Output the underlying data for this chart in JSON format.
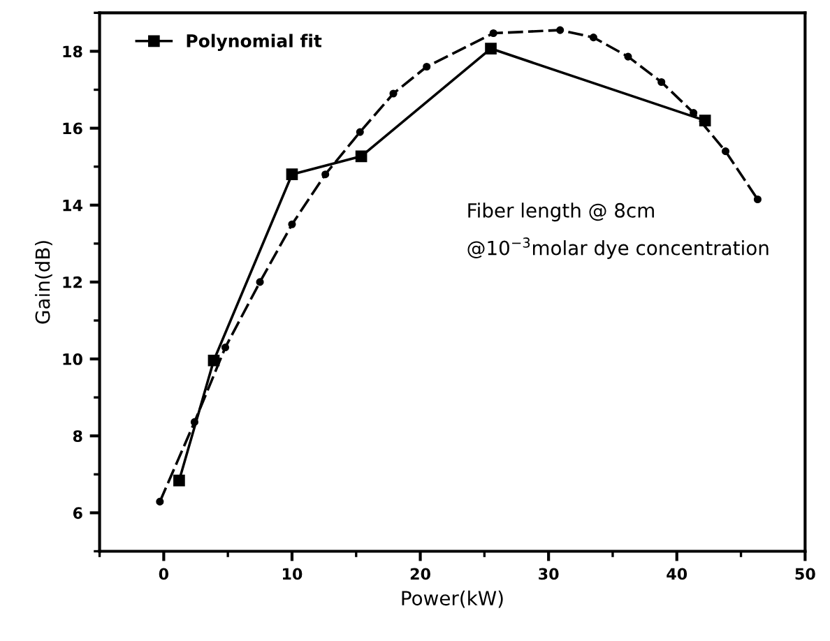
{
  "chart_data": {
    "type": "line",
    "xlabel": "Power(kW)",
    "ylabel": "Gain(dB)",
    "xlim": [
      -5,
      50
    ],
    "ylim": [
      5,
      19
    ],
    "xticks": [
      0,
      10,
      20,
      30,
      40,
      50
    ],
    "yticks": [
      6,
      8,
      10,
      12,
      14,
      16,
      18
    ],
    "grid": false,
    "legend": "top left",
    "annotations": [
      "Fiber length @ 8cm",
      "@10$^{−3}$molar dye concentration"
    ],
    "series": [
      {
        "name": "Polynomial fit",
        "color": "#000000",
        "marker": "square",
        "line_style": "solid",
        "x": [
          1.2,
          3.9,
          10.0,
          15.4,
          25.5,
          42.2
        ],
        "values": [
          6.84,
          9.96,
          14.8,
          15.27,
          18.07,
          16.2
        ]
      },
      {
        "color": "#000000",
        "marker": "circle",
        "line_style": "dashed",
        "x": [
          -0.3,
          2.4,
          4.8,
          7.5,
          10.0,
          12.6,
          15.3,
          17.9,
          20.5,
          25.7,
          30.9,
          33.5,
          36.2,
          38.8,
          41.3,
          43.8,
          46.3
        ],
        "values": [
          6.29,
          8.36,
          10.3,
          12.0,
          13.5,
          14.8,
          15.9,
          16.9,
          17.6,
          18.47,
          18.55,
          18.36,
          17.86,
          17.2,
          16.4,
          15.4,
          14.15
        ]
      }
    ]
  }
}
